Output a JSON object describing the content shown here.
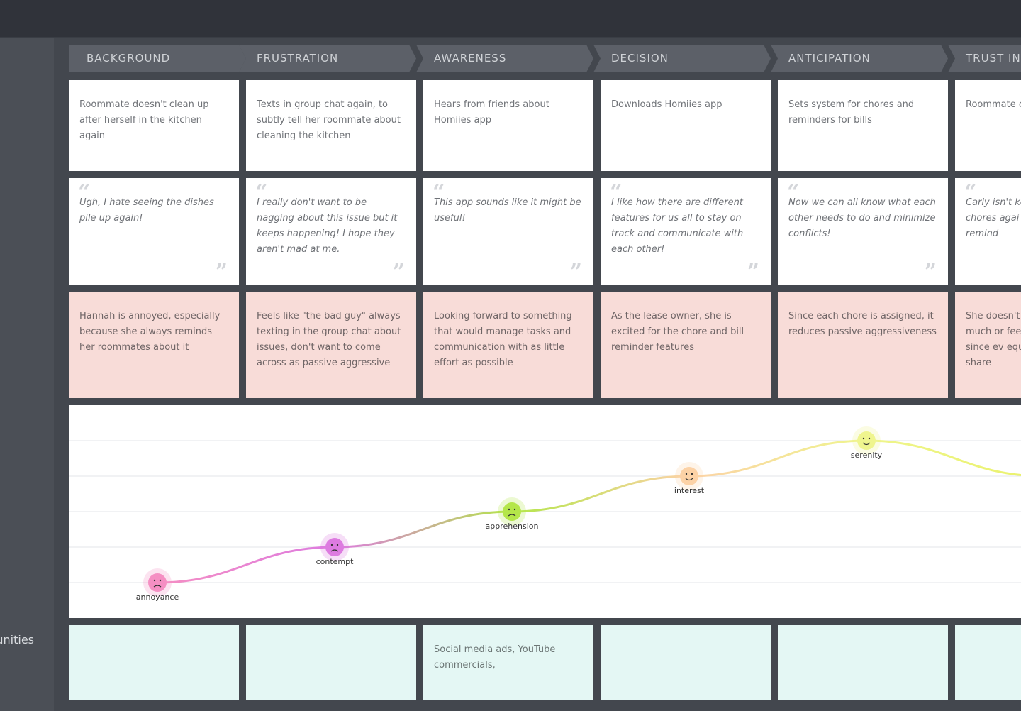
{
  "sidebar": {
    "opportunities_label": "Opportunities"
  },
  "phases": [
    {
      "label": "BACKGROUND"
    },
    {
      "label": "FRUSTRATION"
    },
    {
      "label": "AWARENESS"
    },
    {
      "label": "DECISION"
    },
    {
      "label": "ANTICIPATION"
    },
    {
      "label": "TRUST IN"
    }
  ],
  "actions": [
    "Roommate doesn't clean up after herself in the kitchen again",
    "Texts in group chat again, to subtly tell her roommate about cleaning the kitchen",
    "Hears from friends about Homiies app",
    "Downloads Homiies app",
    "Sets system for chores and reminders for bills",
    "Roommate chores"
  ],
  "quotes": [
    "Ugh, I hate seeing the dishes pile up again!",
    "I really don't want to be nagging about this issue but it keeps happening! I hope they aren't mad at me.",
    "This app sounds like it might be useful!",
    "I like how there are different features for us all to stay on track and communicate with each other!",
    "Now we can all know what each other needs to do and minimize conflicts!",
    "Carly isn't ke chores agai app remind"
  ],
  "thoughts": [
    "Hannah is annoyed, especially because she always reminds her roommates about it",
    "Feels like \"the bad guy\" always texting in the group chat about issues, don't want to come across as passive aggressive",
    "Looking forward to something that would manage tasks and communication with as little effort as possible",
    "As the lease owner, she is excited for the chore and bill reminder features",
    "Since each chore is assigned, it reduces passive aggressiveness",
    "She doesn't much or fee guy since ev equal share"
  ],
  "opportunities": [
    "",
    "",
    "Social media ads, YouTube commercials,",
    "",
    "",
    ""
  ],
  "chart_data": {
    "type": "line",
    "levels": 6,
    "points": [
      {
        "emotion": "annoyance",
        "level": 1,
        "color": "#f58fc3"
      },
      {
        "emotion": "contempt",
        "level": 2,
        "color": "#dd7be0"
      },
      {
        "emotion": "apprehension",
        "level": 3,
        "color": "#b4e64a"
      },
      {
        "emotion": "interest",
        "level": 4,
        "color": "#fcd2a6"
      },
      {
        "emotion": "serenity",
        "level": 5,
        "color": "#eff58e"
      },
      {
        "emotion": "",
        "level": 4,
        "color": "#eaf26a"
      }
    ]
  }
}
